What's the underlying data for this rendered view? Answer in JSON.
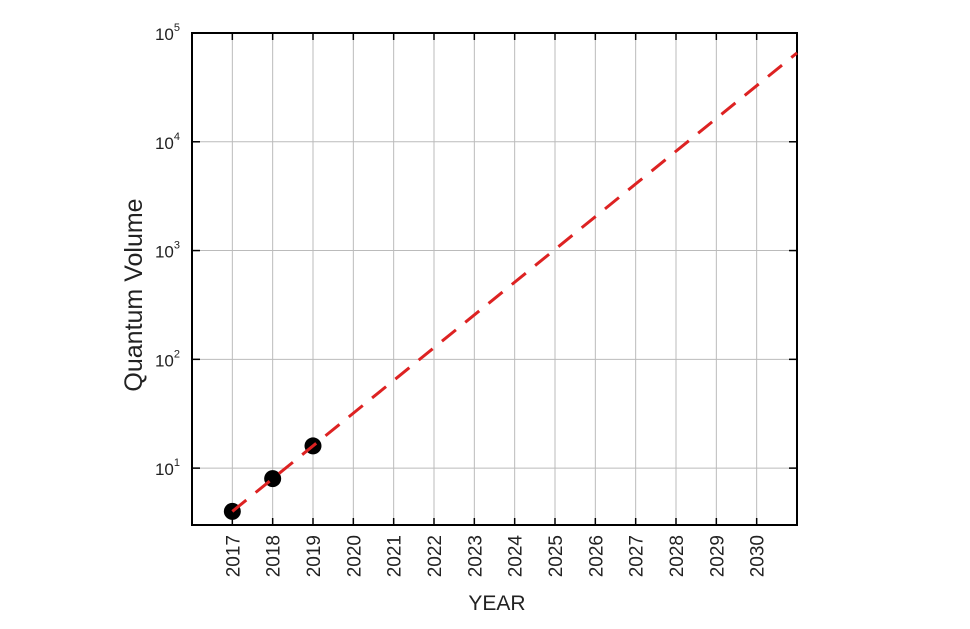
{
  "chart_data": {
    "type": "scatter",
    "xlabel": "YEAR",
    "ylabel": "Quantum Volume",
    "xlim": [
      2016,
      2031
    ],
    "xticks": [
      2017,
      2018,
      2019,
      2020,
      2021,
      2022,
      2023,
      2024,
      2025,
      2026,
      2027,
      2028,
      2029,
      2030
    ],
    "ylim": [
      3,
      100000
    ],
    "yscale": "log",
    "yticks": [
      {
        "value": 10,
        "label": "10",
        "exponent": "1"
      },
      {
        "value": 100,
        "label": "10",
        "exponent": "2"
      },
      {
        "value": 1000,
        "label": "10",
        "exponent": "3"
      },
      {
        "value": 10000,
        "label": "10",
        "exponent": "4"
      },
      {
        "value": 100000,
        "label": "10",
        "exponent": "5"
      }
    ],
    "grid": true,
    "series": [
      {
        "style": "marker",
        "color": "#000000",
        "x": [
          2017,
          2018,
          2019
        ],
        "values": [
          4,
          8,
          16
        ]
      },
      {
        "style": "dashed",
        "color": "#dd2222",
        "x": [
          2017,
          2031
        ],
        "values": [
          4,
          65536
        ]
      }
    ]
  }
}
